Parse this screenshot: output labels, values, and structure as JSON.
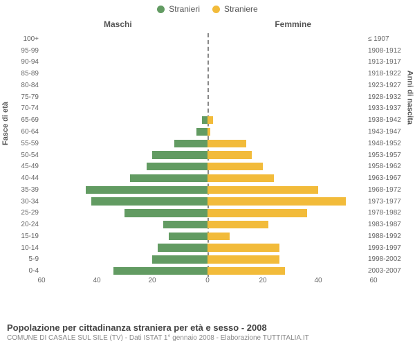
{
  "chart": {
    "type": "population-pyramid",
    "background_color": "#ffffff",
    "grid_color": "#e0e0e0",
    "text_color": "#666666",
    "title_half_left": "Maschi",
    "title_half_right": "Femmine",
    "y_title_left": "Fasce di età",
    "y_title_right": "Anni di nascita",
    "x_max": 60,
    "x_ticks_left": [
      60,
      40,
      20,
      0
    ],
    "x_ticks_right": [
      0,
      20,
      40,
      60
    ],
    "legend": [
      {
        "label": "Stranieri",
        "color": "#629b62"
      },
      {
        "label": "Straniere",
        "color": "#f2bb3a"
      }
    ],
    "male_color": "#629b62",
    "female_color": "#f2bb3a",
    "bar_border": "#ffffff",
    "label_fontsize": 10,
    "rows": [
      {
        "age": "100+",
        "birth": "≤ 1907",
        "m": 0,
        "f": 0
      },
      {
        "age": "95-99",
        "birth": "1908-1912",
        "m": 0,
        "f": 0
      },
      {
        "age": "90-94",
        "birth": "1913-1917",
        "m": 0,
        "f": 0
      },
      {
        "age": "85-89",
        "birth": "1918-1922",
        "m": 0,
        "f": 0
      },
      {
        "age": "80-84",
        "birth": "1923-1927",
        "m": 0,
        "f": 0
      },
      {
        "age": "75-79",
        "birth": "1928-1932",
        "m": 0,
        "f": 0
      },
      {
        "age": "70-74",
        "birth": "1933-1937",
        "m": 0,
        "f": 0
      },
      {
        "age": "65-69",
        "birth": "1938-1942",
        "m": 2,
        "f": 2
      },
      {
        "age": "60-64",
        "birth": "1943-1947",
        "m": 4,
        "f": 1
      },
      {
        "age": "55-59",
        "birth": "1948-1952",
        "m": 12,
        "f": 14
      },
      {
        "age": "50-54",
        "birth": "1953-1957",
        "m": 20,
        "f": 16
      },
      {
        "age": "45-49",
        "birth": "1958-1962",
        "m": 22,
        "f": 20
      },
      {
        "age": "40-44",
        "birth": "1963-1967",
        "m": 28,
        "f": 24
      },
      {
        "age": "35-39",
        "birth": "1968-1972",
        "m": 44,
        "f": 40
      },
      {
        "age": "30-34",
        "birth": "1973-1977",
        "m": 42,
        "f": 50
      },
      {
        "age": "25-29",
        "birth": "1978-1982",
        "m": 30,
        "f": 36
      },
      {
        "age": "20-24",
        "birth": "1983-1987",
        "m": 16,
        "f": 22
      },
      {
        "age": "15-19",
        "birth": "1988-1992",
        "m": 14,
        "f": 8
      },
      {
        "age": "10-14",
        "birth": "1993-1997",
        "m": 18,
        "f": 26
      },
      {
        "age": "5-9",
        "birth": "1998-2002",
        "m": 20,
        "f": 26
      },
      {
        "age": "0-4",
        "birth": "2003-2007",
        "m": 34,
        "f": 28
      }
    ]
  },
  "footer": {
    "title": "Popolazione per cittadinanza straniera per età e sesso - 2008",
    "subtitle": "COMUNE DI CASALE SUL SILE (TV) - Dati ISTAT 1° gennaio 2008 - Elaborazione TUTTITALIA.IT"
  }
}
